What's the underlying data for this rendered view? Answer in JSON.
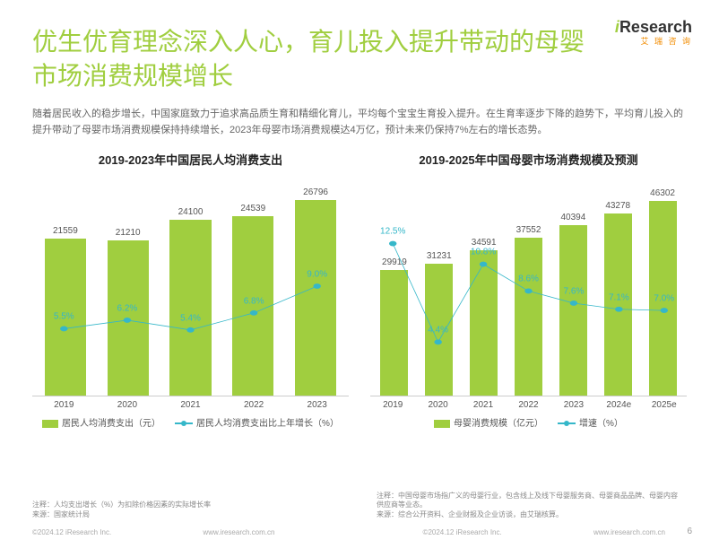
{
  "logo": {
    "prefix": "i",
    "rest": "Research",
    "sub": "艾 瑞 咨 询"
  },
  "title": "优生优育理念深入人心，育儿投入提升带动的母婴市场消费规模增长",
  "desc": "随着居民收入的稳步增长，中国家庭致力于追求高品质生育和精细化育儿，平均每个宝宝生育投入提升。在生育率逐步下降的趋势下，平均育儿投入的提升带动了母婴市场消费规模保持持续增长，2023年母婴市场消费规模达4万亿，预计未来仍保持7%左右的增长态势。",
  "colors": {
    "bar": "#a0ce3f",
    "line": "#35b7c9",
    "title": "#a0ce3f",
    "text": "#555"
  },
  "chart_left": {
    "title": "2019-2023年中国居民人均消费支出",
    "categories": [
      "2019",
      "2020",
      "2021",
      "2022",
      "2023"
    ],
    "bars": [
      21559,
      21210,
      24100,
      24539,
      26796
    ],
    "line": [
      5.5,
      6.2,
      5.4,
      6.8,
      9.0
    ],
    "bar_ymax": 30000,
    "line_ymax": 18,
    "bar_width_pct": 66,
    "legend_bar": "居民人均消费支出（元）",
    "legend_line": "居民人均消费支出比上年增长（%）",
    "note": "注释：人均支出增长（%）为扣除价格因素的实际增长率\n来源：国家统计局"
  },
  "chart_right": {
    "title": "2019-2025年中国母婴市场消费规模及预测",
    "categories": [
      "2019",
      "2020",
      "2021",
      "2022",
      "2023",
      "2024e",
      "2025e"
    ],
    "bars": [
      29919,
      31231,
      34591,
      37552,
      40394,
      43278,
      46302
    ],
    "line": [
      12.5,
      4.4,
      10.8,
      8.6,
      7.6,
      7.1,
      7.0
    ],
    "bar_ymax": 52000,
    "line_ymax": 18,
    "bar_width_pct": 62,
    "legend_bar": "母婴消费规模（亿元）",
    "legend_line": "增速（%）",
    "note": "注释：中国母婴市场指广义的母婴行业，包含线上及线下母婴服务商、母婴商品品牌、母婴内容供应商等业态。\n来源：综合公开资料、企业财报及企业访谈，由艾瑞核算。"
  },
  "copyright": "©2024.12 iResearch Inc.",
  "site": "www.iresearch.com.cn",
  "page": "6"
}
